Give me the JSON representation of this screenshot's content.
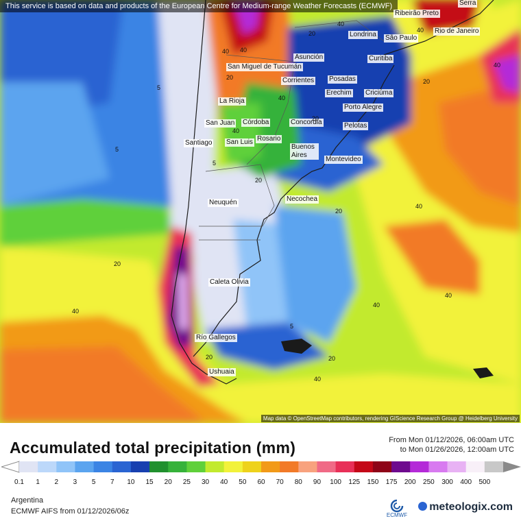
{
  "notice": "This service is based on data and products of the European Centre for Medium-range Weather Forecasts (ECMWF)",
  "attribution": "Map data © OpenStreetMap contributors, rendering GIScience Research Group @ Heidelberg University",
  "title": "Accumulated total precipitation (mm)",
  "range": {
    "from": "From Mon 01/12/2026, 06:00am UTC",
    "to": "to Mon 01/26/2026, 12:00am UTC"
  },
  "region": "Argentina",
  "model": "ECMWF AIFS from  01/12/2026/06z",
  "brand": "meteologix.com",
  "ecmwf_logo": "ECMWF",
  "legend": {
    "values": [
      "0.1",
      "1",
      "2",
      "3",
      "5",
      "7",
      "10",
      "15",
      "20",
      "25",
      "30",
      "40",
      "50",
      "60",
      "70",
      "80",
      "90",
      "100",
      "125",
      "150",
      "175",
      "200",
      "250",
      "300",
      "400",
      "500"
    ],
    "colors": [
      "#e0e4f4",
      "#bcd8fa",
      "#90c4f8",
      "#5ba4ef",
      "#3b84e4",
      "#2a64d2",
      "#1840b0",
      "#20902e",
      "#36b23a",
      "#5fd03a",
      "#c2ea2e",
      "#f2f23a",
      "#eed21c",
      "#f29a18",
      "#f27a28",
      "#f8a27e",
      "#f06a86",
      "#e83058",
      "#c40818",
      "#8e0418",
      "#6e0a8e",
      "#b42ad8",
      "#d87af0",
      "#e8b2f4",
      "#f8f0f8",
      "#c8c8c8"
    ]
  },
  "cities": [
    {
      "name": "Ribeirão Preto",
      "label": "Ribeirão\nPreto"
    },
    {
      "name": "São Paulo",
      "label": "São Paulo"
    },
    {
      "name": "Rio de Janeiro",
      "label": "Rio de Janeiro"
    },
    {
      "name": "Londrina",
      "label": "Londrina"
    },
    {
      "name": "Curitiba",
      "label": "Curitiba"
    },
    {
      "name": "Asunción",
      "label": "Asunción"
    },
    {
      "name": "San Miguel de Tucumán",
      "label": "San Miguel\nde Tucumán"
    },
    {
      "name": "Corrientes",
      "label": "Corrientes"
    },
    {
      "name": "Posadas",
      "label": "Posadas"
    },
    {
      "name": "Erechim",
      "label": "Erechim"
    },
    {
      "name": "Criciúma",
      "label": "Criciúma"
    },
    {
      "name": "La Rioja",
      "label": "La Rioja"
    },
    {
      "name": "Porto Alegre",
      "label": "Porto Alegre"
    },
    {
      "name": "San Juan",
      "label": "San Juan"
    },
    {
      "name": "Córdoba",
      "label": "Córdoba"
    },
    {
      "name": "Concordia",
      "label": "Concordia"
    },
    {
      "name": "Pelotas",
      "label": "Pelotas"
    },
    {
      "name": "Santiago",
      "label": "Santiago"
    },
    {
      "name": "San Luis",
      "label": "San Luis"
    },
    {
      "name": "Rosario",
      "label": "Rosario"
    },
    {
      "name": "Buenos Aires",
      "label": "Buenos\nAires"
    },
    {
      "name": "Montevideo",
      "label": "Montevideo"
    },
    {
      "name": "Necochea",
      "label": "Necochea"
    },
    {
      "name": "Neuquén",
      "label": "Neuquén"
    },
    {
      "name": "Caleta Olivia",
      "label": "Caleta Olivia"
    },
    {
      "name": "Río Gallegos",
      "label": "Río Gallegos"
    },
    {
      "name": "Ushuaia",
      "label": "Ushuaia"
    },
    {
      "name": "Serra",
      "label": "Serra"
    }
  ],
  "contour_labels": [
    "40",
    "20",
    "5",
    "5",
    "5",
    "20",
    "20",
    "40",
    "20",
    "40",
    "40",
    "20",
    "40",
    "40",
    "40",
    "5",
    "20",
    "20",
    "40",
    "40",
    "40",
    "20",
    "40",
    "20",
    "40"
  ]
}
